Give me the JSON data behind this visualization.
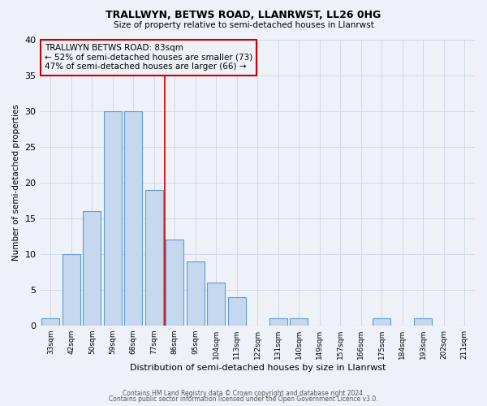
{
  "title": "TRALLWYN, BETWS ROAD, LLANRWST, LL26 0HG",
  "subtitle": "Size of property relative to semi-detached houses in Llanrwst",
  "xlabel": "Distribution of semi-detached houses by size in Llanrwst",
  "ylabel": "Number of semi-detached properties",
  "bin_labels": [
    "33sqm",
    "42sqm",
    "50sqm",
    "59sqm",
    "68sqm",
    "77sqm",
    "86sqm",
    "95sqm",
    "104sqm",
    "113sqm",
    "122sqm",
    "131sqm",
    "140sqm",
    "149sqm",
    "157sqm",
    "166sqm",
    "175sqm",
    "184sqm",
    "193sqm",
    "202sqm",
    "211sqm"
  ],
  "counts": [
    1,
    10,
    16,
    30,
    30,
    19,
    12,
    9,
    6,
    4,
    0,
    1,
    1,
    0,
    0,
    0,
    1,
    0,
    1,
    0,
    0
  ],
  "bar_fill_color": "#c5d8ed",
  "bar_edge_color": "#5b9bd5",
  "marker_bin_index": 6,
  "marker_color": "#cc0000",
  "annotation_title": "TRALLWYN BETWS ROAD: 83sqm",
  "annotation_line1": "← 52% of semi-detached houses are smaller (73)",
  "annotation_line2": "47% of semi-detached houses are larger (66) →",
  "annotation_box_edge_color": "#cc0000",
  "ylim": [
    0,
    40
  ],
  "yticks": [
    0,
    5,
    10,
    15,
    20,
    25,
    30,
    35,
    40
  ],
  "grid_color": "#d0d8e8",
  "bg_color": "#eef2f8",
  "footnote1": "Contains HM Land Registry data © Crown copyright and database right 2024.",
  "footnote2": "Contains public sector information licensed under the Open Government Licence v3.0."
}
